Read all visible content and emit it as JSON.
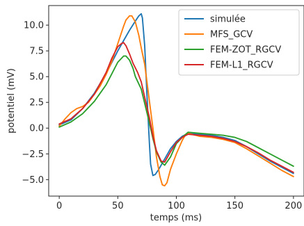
{
  "chart_data": {
    "type": "line",
    "title": "",
    "xlabel": "temps (ms)",
    "ylabel": "potentiel (mV)",
    "xlim": [
      -9,
      209
    ],
    "ylim": [
      -6.6,
      11.9
    ],
    "xticks": [
      0,
      50,
      100,
      150,
      200
    ],
    "yticks": [
      -5.0,
      -2.5,
      0.0,
      2.5,
      5.0,
      7.5,
      10.0
    ],
    "xtick_labels": [
      "0",
      "50",
      "100",
      "150",
      "200"
    ],
    "ytick_labels": [
      "−5.0",
      "−2.5",
      "0.0",
      "2.5",
      "5.0",
      "7.5",
      "10.0"
    ],
    "grid": false,
    "legend_position": "top-right",
    "series": [
      {
        "name": "simulée",
        "color": "#1f77b4",
        "points": [
          [
            0,
            0.3
          ],
          [
            10,
            0.8
          ],
          [
            20,
            1.9
          ],
          [
            30,
            3.4
          ],
          [
            40,
            5.3
          ],
          [
            50,
            7.5
          ],
          [
            55,
            8.5
          ],
          [
            60,
            9.5
          ],
          [
            65,
            10.4
          ],
          [
            68,
            10.9
          ],
          [
            70,
            11.1
          ],
          [
            71,
            10.7
          ],
          [
            73,
            8.0
          ],
          [
            75,
            3.0
          ],
          [
            77,
            -1.5
          ],
          [
            78,
            -3.5
          ],
          [
            80,
            -4.6
          ],
          [
            82,
            -4.5
          ],
          [
            85,
            -4.0
          ],
          [
            90,
            -3.0
          ],
          [
            95,
            -2.0
          ],
          [
            100,
            -1.3
          ],
          [
            105,
            -0.8
          ],
          [
            110,
            -0.5
          ],
          [
            120,
            -0.6
          ],
          [
            130,
            -0.7
          ],
          [
            140,
            -0.9
          ],
          [
            150,
            -1.2
          ],
          [
            160,
            -1.8
          ],
          [
            170,
            -2.5
          ],
          [
            180,
            -3.2
          ],
          [
            190,
            -3.8
          ],
          [
            200,
            -4.4
          ]
        ]
      },
      {
        "name": "MFS_GCV",
        "color": "#ff7f0e",
        "points": [
          [
            0,
            0.2
          ],
          [
            5,
            0.9
          ],
          [
            10,
            1.5
          ],
          [
            15,
            1.9
          ],
          [
            20,
            2.1
          ],
          [
            25,
            2.5
          ],
          [
            30,
            3.3
          ],
          [
            35,
            4.1
          ],
          [
            40,
            5.2
          ],
          [
            45,
            6.5
          ],
          [
            50,
            8.2
          ],
          [
            55,
            9.9
          ],
          [
            57,
            10.5
          ],
          [
            60,
            10.9
          ],
          [
            62,
            10.9
          ],
          [
            65,
            10.3
          ],
          [
            68,
            9.0
          ],
          [
            70,
            7.8
          ],
          [
            73,
            6.2
          ],
          [
            76,
            3.5
          ],
          [
            80,
            0.0
          ],
          [
            83,
            -2.8
          ],
          [
            86,
            -4.7
          ],
          [
            88,
            -5.5
          ],
          [
            90,
            -5.6
          ],
          [
            92,
            -5.3
          ],
          [
            95,
            -4.0
          ],
          [
            100,
            -2.5
          ],
          [
            105,
            -1.2
          ],
          [
            108,
            -0.6
          ],
          [
            110,
            -0.5
          ],
          [
            120,
            -0.8
          ],
          [
            130,
            -0.9
          ],
          [
            140,
            -1.1
          ],
          [
            150,
            -1.4
          ],
          [
            160,
            -2.0
          ],
          [
            170,
            -2.7
          ],
          [
            180,
            -3.4
          ],
          [
            190,
            -4.1
          ],
          [
            200,
            -4.7
          ]
        ]
      },
      {
        "name": "FEM-ZOT_RGCV",
        "color": "#2ca02c",
        "points": [
          [
            0,
            0.1
          ],
          [
            10,
            0.6
          ],
          [
            20,
            1.4
          ],
          [
            30,
            2.6
          ],
          [
            40,
            4.2
          ],
          [
            45,
            5.3
          ],
          [
            50,
            6.4
          ],
          [
            55,
            7.0
          ],
          [
            57,
            7.0
          ],
          [
            60,
            6.6
          ],
          [
            63,
            5.8
          ],
          [
            65,
            5.0
          ],
          [
            70,
            3.8
          ],
          [
            73,
            2.4
          ],
          [
            77,
            0.5
          ],
          [
            80,
            -1.0
          ],
          [
            83,
            -2.3
          ],
          [
            87,
            -3.3
          ],
          [
            90,
            -3.6
          ],
          [
            95,
            -2.8
          ],
          [
            100,
            -1.5
          ],
          [
            105,
            -0.9
          ],
          [
            110,
            -0.4
          ],
          [
            120,
            -0.5
          ],
          [
            130,
            -0.6
          ],
          [
            140,
            -0.7
          ],
          [
            150,
            -0.9
          ],
          [
            160,
            -1.3
          ],
          [
            170,
            -1.9
          ],
          [
            180,
            -2.5
          ],
          [
            190,
            -3.1
          ],
          [
            200,
            -3.7
          ]
        ]
      },
      {
        "name": "FEM-L1_RGCV",
        "color": "#d62728",
        "points": [
          [
            0,
            0.4
          ],
          [
            10,
            0.9
          ],
          [
            20,
            1.9
          ],
          [
            30,
            3.3
          ],
          [
            40,
            5.4
          ],
          [
            45,
            6.8
          ],
          [
            50,
            7.9
          ],
          [
            53,
            8.2
          ],
          [
            55,
            8.3
          ],
          [
            57,
            8.0
          ],
          [
            60,
            7.2
          ],
          [
            63,
            6.3
          ],
          [
            67,
            5.4
          ],
          [
            70,
            4.5
          ],
          [
            73,
            3.0
          ],
          [
            77,
            1.0
          ],
          [
            80,
            -0.8
          ],
          [
            83,
            -2.2
          ],
          [
            87,
            -3.2
          ],
          [
            90,
            -3.3
          ],
          [
            95,
            -2.3
          ],
          [
            100,
            -1.4
          ],
          [
            105,
            -0.9
          ],
          [
            110,
            -0.6
          ],
          [
            120,
            -0.7
          ],
          [
            130,
            -0.8
          ],
          [
            140,
            -1.0
          ],
          [
            150,
            -1.3
          ],
          [
            160,
            -1.8
          ],
          [
            170,
            -2.4
          ],
          [
            180,
            -3.1
          ],
          [
            190,
            -3.7
          ],
          [
            200,
            -4.3
          ]
        ]
      }
    ]
  }
}
